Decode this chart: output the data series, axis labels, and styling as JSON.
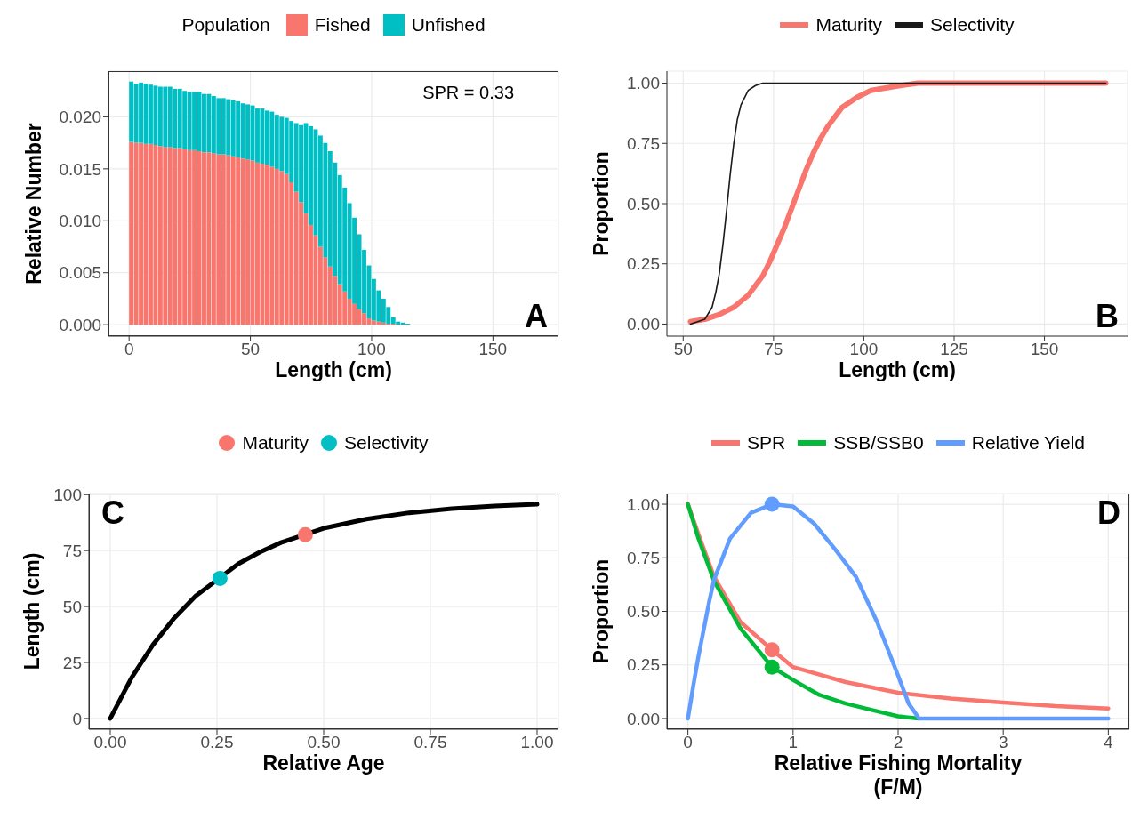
{
  "chart_data": [
    {
      "type": "bar",
      "stacked": true,
      "xlabel": "Length (cm)",
      "ylabel": "Relative Number",
      "legend_title": "Population",
      "legend": "top",
      "grid": true,
      "annotations": [
        "SPR = 0.33",
        "A"
      ],
      "x": [
        1,
        3,
        5,
        7,
        9,
        11,
        13,
        15,
        17,
        19,
        21,
        23,
        25,
        27,
        29,
        31,
        33,
        35,
        37,
        39,
        41,
        43,
        45,
        47,
        49,
        51,
        53,
        55,
        57,
        59,
        61,
        63,
        65,
        67,
        69,
        71,
        73,
        75,
        77,
        79,
        81,
        83,
        85,
        87,
        89,
        91,
        93,
        95,
        97,
        99,
        101,
        103,
        105,
        107,
        109,
        111,
        113,
        115
      ],
      "xlim": [
        -8.5,
        177
      ],
      "xticks": [
        0,
        50,
        100,
        150
      ],
      "ylim": [
        -0.0011,
        0.0244
      ],
      "yticks": [
        {
          "value": 0,
          "label": "0.000"
        },
        {
          "value": 0.005,
          "label": "0.005"
        },
        {
          "value": 0.01,
          "label": "0.010"
        },
        {
          "value": 0.015,
          "label": "0.015"
        },
        {
          "value": 0.02,
          "label": "0.020"
        }
      ],
      "series": [
        {
          "name": "Fished",
          "color": "#f8766d",
          "values": [
            0.0176,
            0.0175,
            0.0175,
            0.0174,
            0.0174,
            0.0173,
            0.0172,
            0.0171,
            0.0171,
            0.017,
            0.017,
            0.0169,
            0.0168,
            0.0168,
            0.0167,
            0.0166,
            0.0166,
            0.0165,
            0.0164,
            0.0164,
            0.0163,
            0.0162,
            0.0161,
            0.016,
            0.0159,
            0.0158,
            0.0156,
            0.0155,
            0.0154,
            0.0152,
            0.015,
            0.0148,
            0.0145,
            0.0137,
            0.0128,
            0.0118,
            0.0107,
            0.0096,
            0.0086,
            0.0075,
            0.0065,
            0.0056,
            0.0047,
            0.0039,
            0.0032,
            0.0025,
            0.002,
            0.0015,
            0.0011,
            0.0006,
            0.0004,
            0.0003,
            0.0002,
            0.0001,
            0.0001,
            0,
            0,
            0
          ]
        },
        {
          "name": "Unfished",
          "color": "#00bfc4",
          "values": [
            0.0058,
            0.0057,
            0.0058,
            0.0058,
            0.0057,
            0.0057,
            0.0057,
            0.0058,
            0.0058,
            0.0057,
            0.0057,
            0.0056,
            0.0056,
            0.0056,
            0.0057,
            0.0056,
            0.0056,
            0.0055,
            0.0054,
            0.0054,
            0.0054,
            0.0054,
            0.0054,
            0.0053,
            0.0053,
            0.0053,
            0.0052,
            0.0053,
            0.0052,
            0.0053,
            0.0052,
            0.0052,
            0.0054,
            0.0059,
            0.0066,
            0.0074,
            0.0087,
            0.0095,
            0.0102,
            0.0107,
            0.011,
            0.0111,
            0.0109,
            0.0105,
            0.01,
            0.0092,
            0.0083,
            0.0072,
            0.0061,
            0.0051,
            0.004,
            0.003,
            0.0023,
            0.0016,
            0.0006,
            0.0003,
            0.0002,
            0.0001
          ]
        }
      ]
    },
    {
      "type": "line",
      "xlabel": "Length (cm)",
      "ylabel": "Proportion",
      "legend": "top",
      "grid": true,
      "line_style": "solid",
      "annotations": [
        "B"
      ],
      "xlim": [
        45.5,
        173
      ],
      "xticks": [
        50,
        75,
        100,
        125,
        150
      ],
      "ylim": [
        -0.05,
        1.05
      ],
      "yticks": [
        {
          "value": 0,
          "label": "0.00"
        },
        {
          "value": 0.25,
          "label": "0.25"
        },
        {
          "value": 0.5,
          "label": "0.50"
        },
        {
          "value": 0.75,
          "label": "0.75"
        },
        {
          "value": 1,
          "label": "1.00"
        }
      ],
      "series": [
        {
          "name": "Maturity",
          "color": "#f8766d",
          "x": [
            52,
            56,
            60,
            64,
            68,
            72,
            74,
            76,
            78,
            80,
            82,
            84,
            86,
            88,
            90,
            94,
            98,
            102,
            106,
            110,
            115,
            120,
            130,
            140,
            150,
            160,
            167
          ],
          "values": [
            0.01,
            0.02,
            0.04,
            0.07,
            0.12,
            0.2,
            0.26,
            0.33,
            0.4,
            0.48,
            0.56,
            0.64,
            0.71,
            0.77,
            0.82,
            0.9,
            0.94,
            0.97,
            0.98,
            0.99,
            1,
            1,
            1,
            1,
            1,
            1,
            1
          ]
        },
        {
          "name": "Selectivity",
          "color": "#1a1a1a",
          "x": [
            52,
            54,
            56,
            58,
            59,
            60,
            61,
            62,
            63,
            64,
            65,
            66,
            68,
            70,
            72,
            80,
            100,
            130,
            167
          ],
          "values": [
            0,
            0.01,
            0.02,
            0.07,
            0.13,
            0.21,
            0.33,
            0.47,
            0.62,
            0.75,
            0.85,
            0.91,
            0.97,
            0.99,
            1,
            1,
            1,
            1,
            1
          ]
        }
      ]
    },
    {
      "type": "line",
      "xlabel": "Relative Age",
      "ylabel": "Length (cm)",
      "legend": "top",
      "grid": true,
      "line_style": "solid",
      "annotations": [
        "C"
      ],
      "xlim": [
        -0.05,
        1.05
      ],
      "xticks": [
        {
          "value": 0,
          "label": "0.00"
        },
        {
          "value": 0.25,
          "label": "0.25"
        },
        {
          "value": 0.5,
          "label": "0.50"
        },
        {
          "value": 0.75,
          "label": "0.75"
        },
        {
          "value": 1,
          "label": "1.00"
        }
      ],
      "ylim": [
        -4.8,
        100.5
      ],
      "yticks": [
        0,
        25,
        50,
        75,
        100
      ],
      "series": [
        {
          "color": "#000000",
          "x": [
            0,
            0.05,
            0.1,
            0.15,
            0.2,
            0.3,
            0.35,
            0.4,
            0.5,
            0.6,
            0.7,
            0.8,
            0.9,
            1
          ],
          "values": [
            0,
            18.2,
            32.9,
            44.9,
            54.7,
            69.1,
            74.3,
            78.6,
            85,
            89.1,
            91.9,
            93.7,
            94.9,
            95.7
          ]
        },
        {
          "type": "scatter",
          "name": "Maturity",
          "color": "#f8766d",
          "x": [
            0.457
          ],
          "values": [
            82.1
          ]
        },
        {
          "type": "scatter",
          "name": "Selectivity",
          "color": "#00bfc4",
          "x": [
            0.257
          ],
          "values": [
            62.6
          ]
        }
      ]
    },
    {
      "type": "line",
      "xlabel": "Relative Fishing Mortality\n(F/M)",
      "ylabel": "Proportion",
      "legend": "top",
      "grid": true,
      "line_style": "solid",
      "annotations": [
        "D"
      ],
      "xlim": [
        -0.2,
        4.2
      ],
      "xticks": [
        0,
        1,
        2,
        3,
        4
      ],
      "ylim": [
        -0.05,
        1.05
      ],
      "yticks": [
        {
          "value": 0,
          "label": "0.00"
        },
        {
          "value": 0.25,
          "label": "0.25"
        },
        {
          "value": 0.5,
          "label": "0.50"
        },
        {
          "value": 0.75,
          "label": "0.75"
        },
        {
          "value": 1,
          "label": "1.00"
        }
      ],
      "series": [
        {
          "name": "SPR",
          "color": "#f8766d",
          "x": [
            0,
            0.1,
            0.25,
            0.5,
            0.8,
            1,
            1.5,
            2,
            2.5,
            3,
            3.5,
            4
          ],
          "values": [
            1,
            0.86,
            0.66,
            0.45,
            0.32,
            0.24,
            0.17,
            0.12,
            0.093,
            0.075,
            0.058,
            0.047
          ]
        },
        {
          "name": "SSB/SSB0",
          "color": "#00ba38",
          "x": [
            0,
            0.1,
            0.25,
            0.5,
            0.8,
            1,
            1.25,
            1.5,
            1.75,
            2,
            2.2
          ],
          "values": [
            1,
            0.84,
            0.64,
            0.42,
            0.24,
            0.18,
            0.11,
            0.07,
            0.04,
            0.01,
            0
          ]
        },
        {
          "name": "Relative Yield",
          "color": "#619cff",
          "x": [
            0,
            0.05,
            0.1,
            0.2,
            0.25,
            0.4,
            0.6,
            0.8,
            1,
            1.2,
            1.4,
            1.6,
            1.8,
            2,
            2.1,
            2.2,
            3,
            4
          ],
          "values": [
            0,
            0.15,
            0.29,
            0.54,
            0.65,
            0.84,
            0.96,
            1,
            0.99,
            0.91,
            0.79,
            0.66,
            0.45,
            0.2,
            0.07,
            0,
            0,
            0
          ]
        },
        {
          "type": "scatter",
          "colors": [
            "#f8766d",
            "#00ba38",
            "#619cff"
          ],
          "x": [
            0.8,
            0.8,
            0.8
          ],
          "values": [
            0.32,
            0.24,
            1
          ]
        }
      ]
    }
  ]
}
